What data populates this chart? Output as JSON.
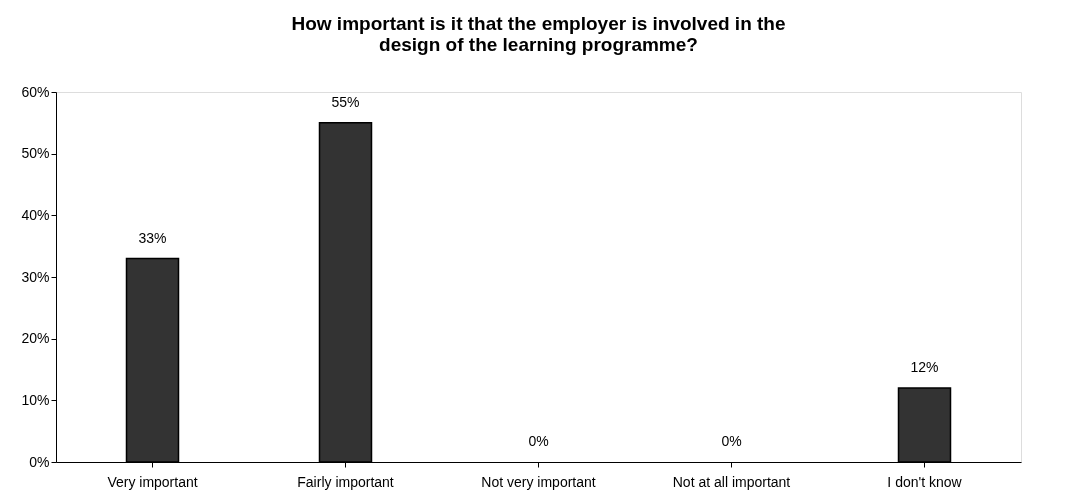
{
  "chart_data": {
    "type": "bar",
    "title": "How important is it that the employer is involved in the design of the learning programme?",
    "categories": [
      "Very important",
      "Fairly important",
      "Not very important",
      "Not at all important",
      "I don't know"
    ],
    "values": [
      33,
      55,
      0,
      0,
      12
    ],
    "value_labels": [
      "33%",
      "55%",
      "0%",
      "0%",
      "12%"
    ],
    "color": "#333333",
    "ylim": [
      0,
      60
    ],
    "yticks": [
      {
        "value": 0,
        "label": "0%"
      },
      {
        "value": 10,
        "label": "10%"
      },
      {
        "value": 20,
        "label": "20%"
      },
      {
        "value": 30,
        "label": "30%"
      },
      {
        "value": 40,
        "label": "40%"
      },
      {
        "value": 50,
        "label": "50%"
      },
      {
        "value": 60,
        "label": "60%"
      }
    ],
    "grid": false
  }
}
